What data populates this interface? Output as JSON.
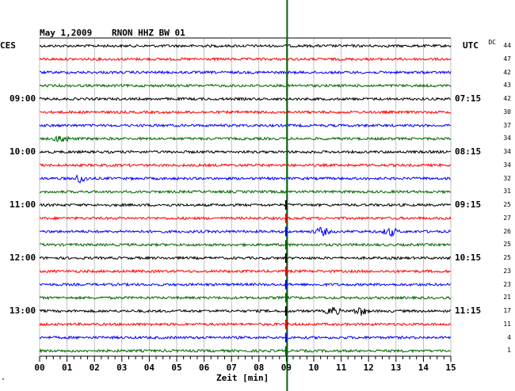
{
  "header": {
    "date": "May 1,2009",
    "station": "RNON HHZ BW 01"
  },
  "labels": {
    "left_timezone": "CES",
    "right_timezone": "UTC",
    "dc_header": "DC",
    "xlabel": "Zeit [min]",
    "footnote": "\""
  },
  "colors": {
    "trace_cycle": [
      "#000000",
      "#ff0000",
      "#0000ff",
      "#006600"
    ],
    "event_marker": "#006600",
    "grid": "#999999"
  },
  "chart_data": {
    "type": "line",
    "title": "May 1,2009   RNON HHZ BW 01",
    "xlabel": "Zeit [min]",
    "x_range": [
      0,
      15
    ],
    "x_ticks": [
      "00",
      "01",
      "02",
      "03",
      "04",
      "05",
      "06",
      "07",
      "08",
      "09",
      "10",
      "11",
      "12",
      "13",
      "14",
      "15"
    ],
    "traces": 24,
    "minutes_per_trace": 15,
    "left_time_labels": [
      {
        "trace": 4,
        "label": "09:00"
      },
      {
        "trace": 8,
        "label": "10:00"
      },
      {
        "trace": 12,
        "label": "11:00"
      },
      {
        "trace": 16,
        "label": "12:00"
      },
      {
        "trace": 20,
        "label": "13:00"
      }
    ],
    "right_time_labels": [
      {
        "trace": 4,
        "label": "07:15"
      },
      {
        "trace": 8,
        "label": "08:15"
      },
      {
        "trace": 12,
        "label": "09:15"
      },
      {
        "trace": 16,
        "label": "10:15"
      },
      {
        "trace": 20,
        "label": "11:15"
      }
    ],
    "dc_offsets": [
      "44",
      "47",
      "42",
      "43",
      "42",
      "30",
      "37",
      "34",
      "34",
      "34",
      "32",
      "31",
      "25",
      "27",
      "26",
      "25",
      "25",
      "23",
      "23",
      "21",
      "17",
      "11",
      "4",
      "1"
    ],
    "event_marker_minute": 9.0,
    "event_onset_trace": 12,
    "local_events": [
      {
        "trace": 7,
        "minute": 0.8
      },
      {
        "trace": 10,
        "minute": 1.5
      },
      {
        "trace": 14,
        "minute": 10.3
      },
      {
        "trace": 14,
        "minute": 12.8
      },
      {
        "trace": 20,
        "minute": 11.7
      },
      {
        "trace": 20,
        "minute": 10.7
      }
    ]
  }
}
